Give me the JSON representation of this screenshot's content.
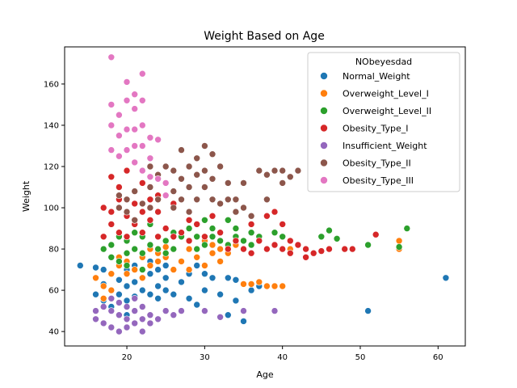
{
  "chart_data": {
    "type": "scatter",
    "title": "Weight Based on Age",
    "xlabel": "Age",
    "ylabel": "Weight",
    "xlim": [
      12,
      63.5
    ],
    "ylim": [
      33,
      178
    ],
    "xticks": [
      20,
      30,
      40,
      50,
      60
    ],
    "yticks": [
      40,
      60,
      80,
      100,
      120,
      140,
      160
    ],
    "legend": {
      "title": "NObeyesdad",
      "position": "top-right"
    },
    "series": [
      {
        "name": "Normal_Weight",
        "color": "#1f77b4",
        "points": [
          [
            14,
            72
          ],
          [
            16,
            71
          ],
          [
            16,
            58
          ],
          [
            16,
            50
          ],
          [
            17,
            70
          ],
          [
            17,
            55
          ],
          [
            17,
            63
          ],
          [
            18,
            52
          ],
          [
            18,
            68
          ],
          [
            19,
            58
          ],
          [
            19,
            65
          ],
          [
            20,
            55
          ],
          [
            20,
            62
          ],
          [
            20,
            70
          ],
          [
            20,
            48
          ],
          [
            21,
            57
          ],
          [
            21,
            64
          ],
          [
            21,
            72
          ],
          [
            22,
            60
          ],
          [
            22,
            66
          ],
          [
            22,
            52
          ],
          [
            23,
            68
          ],
          [
            23,
            58
          ],
          [
            23,
            74
          ],
          [
            24,
            62
          ],
          [
            24,
            70
          ],
          [
            24,
            56
          ],
          [
            25,
            66
          ],
          [
            25,
            72
          ],
          [
            25,
            60
          ],
          [
            26,
            58
          ],
          [
            26,
            70
          ],
          [
            27,
            64
          ],
          [
            28,
            56
          ],
          [
            28,
            68
          ],
          [
            29,
            53
          ],
          [
            29,
            72
          ],
          [
            30,
            60
          ],
          [
            30,
            68
          ],
          [
            31,
            66
          ],
          [
            32,
            58
          ],
          [
            33,
            48
          ],
          [
            33,
            66
          ],
          [
            34,
            65
          ],
          [
            34,
            55
          ],
          [
            35,
            45
          ],
          [
            36,
            60
          ],
          [
            37,
            62
          ],
          [
            38,
            62
          ],
          [
            51,
            50
          ],
          [
            61,
            66
          ]
        ]
      },
      {
        "name": "Overweight_Level_I",
        "color": "#ff7f0e",
        "points": [
          [
            16,
            66
          ],
          [
            17,
            62
          ],
          [
            17,
            56
          ],
          [
            18,
            60
          ],
          [
            18,
            68
          ],
          [
            19,
            72
          ],
          [
            19,
            76
          ],
          [
            20,
            68
          ],
          [
            20,
            74
          ],
          [
            21,
            70
          ],
          [
            22,
            76
          ],
          [
            22,
            66
          ],
          [
            23,
            80
          ],
          [
            23,
            72
          ],
          [
            24,
            74
          ],
          [
            24,
            78
          ],
          [
            25,
            76
          ],
          [
            25,
            81
          ],
          [
            26,
            70
          ],
          [
            26,
            80
          ],
          [
            27,
            74
          ],
          [
            28,
            70
          ],
          [
            28,
            80
          ],
          [
            29,
            76
          ],
          [
            30,
            72
          ],
          [
            30,
            84
          ],
          [
            31,
            78
          ],
          [
            31,
            82
          ],
          [
            32,
            74
          ],
          [
            32,
            80
          ],
          [
            33,
            78
          ],
          [
            34,
            82
          ],
          [
            35,
            63
          ],
          [
            36,
            63
          ],
          [
            37,
            64
          ],
          [
            38,
            62
          ],
          [
            39,
            62
          ],
          [
            40,
            62
          ],
          [
            40,
            80
          ],
          [
            41,
            80
          ],
          [
            42,
            82
          ],
          [
            55,
            84
          ],
          [
            55,
            80
          ]
        ]
      },
      {
        "name": "Overweight_Level_II",
        "color": "#2ca02c",
        "points": [
          [
            17,
            80
          ],
          [
            18,
            82
          ],
          [
            18,
            76
          ],
          [
            19,
            74
          ],
          [
            19,
            86
          ],
          [
            20,
            78
          ],
          [
            20,
            84
          ],
          [
            20,
            72
          ],
          [
            21,
            80
          ],
          [
            21,
            88
          ],
          [
            22,
            78
          ],
          [
            22,
            86
          ],
          [
            22,
            70
          ],
          [
            23,
            82
          ],
          [
            23,
            92
          ],
          [
            24,
            80
          ],
          [
            24,
            86
          ],
          [
            25,
            78
          ],
          [
            25,
            84
          ],
          [
            26,
            88
          ],
          [
            26,
            80
          ],
          [
            27,
            86
          ],
          [
            28,
            84
          ],
          [
            28,
            90
          ],
          [
            29,
            80
          ],
          [
            29,
            86
          ],
          [
            30,
            94
          ],
          [
            30,
            82
          ],
          [
            31,
            86
          ],
          [
            31,
            90
          ],
          [
            32,
            84
          ],
          [
            32,
            88
          ],
          [
            33,
            94
          ],
          [
            33,
            82
          ],
          [
            34,
            86
          ],
          [
            34,
            90
          ],
          [
            35,
            84
          ],
          [
            36,
            88
          ],
          [
            36,
            82
          ],
          [
            37,
            86
          ],
          [
            38,
            80
          ],
          [
            39,
            88
          ],
          [
            40,
            86
          ],
          [
            42,
            82
          ],
          [
            44,
            78
          ],
          [
            45,
            86
          ],
          [
            46,
            89
          ],
          [
            47,
            85
          ],
          [
            51,
            82
          ],
          [
            55,
            81
          ],
          [
            56,
            90
          ]
        ]
      },
      {
        "name": "Obesity_Type_I",
        "color": "#d62728",
        "points": [
          [
            17,
            86
          ],
          [
            17,
            100
          ],
          [
            18,
            92
          ],
          [
            18,
            98
          ],
          [
            18,
            115
          ],
          [
            19,
            88
          ],
          [
            19,
            110
          ],
          [
            19,
            104
          ],
          [
            20,
            96
          ],
          [
            20,
            86
          ],
          [
            20,
            118
          ],
          [
            21,
            92
          ],
          [
            21,
            102
          ],
          [
            21,
            108
          ],
          [
            22,
            98
          ],
          [
            22,
            88
          ],
          [
            22,
            112
          ],
          [
            23,
            94
          ],
          [
            23,
            104
          ],
          [
            24,
            86
          ],
          [
            24,
            98
          ],
          [
            24,
            106
          ],
          [
            25,
            90
          ],
          [
            26,
            86
          ],
          [
            26,
            102
          ],
          [
            27,
            88
          ],
          [
            28,
            94
          ],
          [
            28,
            84
          ],
          [
            29,
            92
          ],
          [
            30,
            86
          ],
          [
            31,
            96
          ],
          [
            32,
            88
          ],
          [
            33,
            80
          ],
          [
            34,
            84
          ],
          [
            35,
            80
          ],
          [
            36,
            92
          ],
          [
            36,
            78
          ],
          [
            37,
            84
          ],
          [
            38,
            80
          ],
          [
            38,
            96
          ],
          [
            39,
            82
          ],
          [
            39,
            98
          ],
          [
            40,
            80
          ],
          [
            40,
            92
          ],
          [
            41,
            84
          ],
          [
            41,
            78
          ],
          [
            42,
            82
          ],
          [
            43,
            80
          ],
          [
            43,
            76
          ],
          [
            44,
            78
          ],
          [
            45,
            79
          ],
          [
            46,
            80
          ],
          [
            48,
            80
          ],
          [
            49,
            80
          ],
          [
            52,
            87
          ]
        ]
      },
      {
        "name": "Insufficient_Weight",
        "color": "#9467bd",
        "points": [
          [
            16,
            50
          ],
          [
            16,
            46
          ],
          [
            17,
            52
          ],
          [
            17,
            44
          ],
          [
            18,
            50
          ],
          [
            18,
            42
          ],
          [
            18,
            56
          ],
          [
            19,
            48
          ],
          [
            19,
            40
          ],
          [
            19,
            54
          ],
          [
            20,
            46
          ],
          [
            20,
            42
          ],
          [
            20,
            52
          ],
          [
            21,
            44
          ],
          [
            21,
            50
          ],
          [
            21,
            56
          ],
          [
            22,
            46
          ],
          [
            22,
            40
          ],
          [
            22,
            52
          ],
          [
            23,
            48
          ],
          [
            23,
            44
          ],
          [
            24,
            46
          ],
          [
            25,
            50
          ],
          [
            26,
            48
          ],
          [
            27,
            50
          ],
          [
            30,
            50
          ],
          [
            32,
            47
          ],
          [
            35,
            50
          ],
          [
            39,
            50
          ]
        ]
      },
      {
        "name": "Obesity_Type_II",
        "color": "#8c564b",
        "points": [
          [
            19,
            106
          ],
          [
            19,
            100
          ],
          [
            20,
            104
          ],
          [
            20,
            98
          ],
          [
            21,
            108
          ],
          [
            21,
            94
          ],
          [
            22,
            102
          ],
          [
            22,
            118
          ],
          [
            23,
            110
          ],
          [
            23,
            100
          ],
          [
            23,
            120
          ],
          [
            24,
            104
          ],
          [
            24,
            116
          ],
          [
            25,
            112
          ],
          [
            25,
            120
          ],
          [
            26,
            108
          ],
          [
            26,
            118
          ],
          [
            26,
            100
          ],
          [
            27,
            114
          ],
          [
            27,
            104
          ],
          [
            27,
            128
          ],
          [
            28,
            110
          ],
          [
            28,
            120
          ],
          [
            28,
            98
          ],
          [
            29,
            116
          ],
          [
            29,
            124
          ],
          [
            29,
            104
          ],
          [
            30,
            130
          ],
          [
            30,
            118
          ],
          [
            30,
            110
          ],
          [
            31,
            126
          ],
          [
            31,
            114
          ],
          [
            31,
            104
          ],
          [
            32,
            120
          ],
          [
            32,
            102
          ],
          [
            33,
            104
          ],
          [
            33,
            112
          ],
          [
            34,
            104
          ],
          [
            34,
            98
          ],
          [
            35,
            112
          ],
          [
            35,
            100
          ],
          [
            36,
            96
          ],
          [
            37,
            118
          ],
          [
            38,
            116
          ],
          [
            38,
            104
          ],
          [
            39,
            118
          ],
          [
            40,
            112
          ],
          [
            40,
            118
          ],
          [
            41,
            115
          ],
          [
            42,
            118
          ]
        ]
      },
      {
        "name": "Obesity_Type_III",
        "color": "#e377c2",
        "points": [
          [
            18,
            173
          ],
          [
            18,
            150
          ],
          [
            18,
            140
          ],
          [
            18,
            128
          ],
          [
            19,
            145
          ],
          [
            19,
            135
          ],
          [
            19,
            125
          ],
          [
            20,
            161
          ],
          [
            20,
            152
          ],
          [
            20,
            138
          ],
          [
            20,
            128
          ],
          [
            21,
            155
          ],
          [
            21,
            148
          ],
          [
            21,
            138
          ],
          [
            21,
            130
          ],
          [
            21,
            122
          ],
          [
            22,
            165
          ],
          [
            22,
            152
          ],
          [
            22,
            140
          ],
          [
            22,
            130
          ],
          [
            22,
            118
          ],
          [
            23,
            134
          ],
          [
            23,
            124
          ],
          [
            23,
            115
          ],
          [
            24,
            133
          ],
          [
            24,
            114
          ],
          [
            25,
            112
          ],
          [
            25,
            106
          ]
        ]
      }
    ]
  }
}
